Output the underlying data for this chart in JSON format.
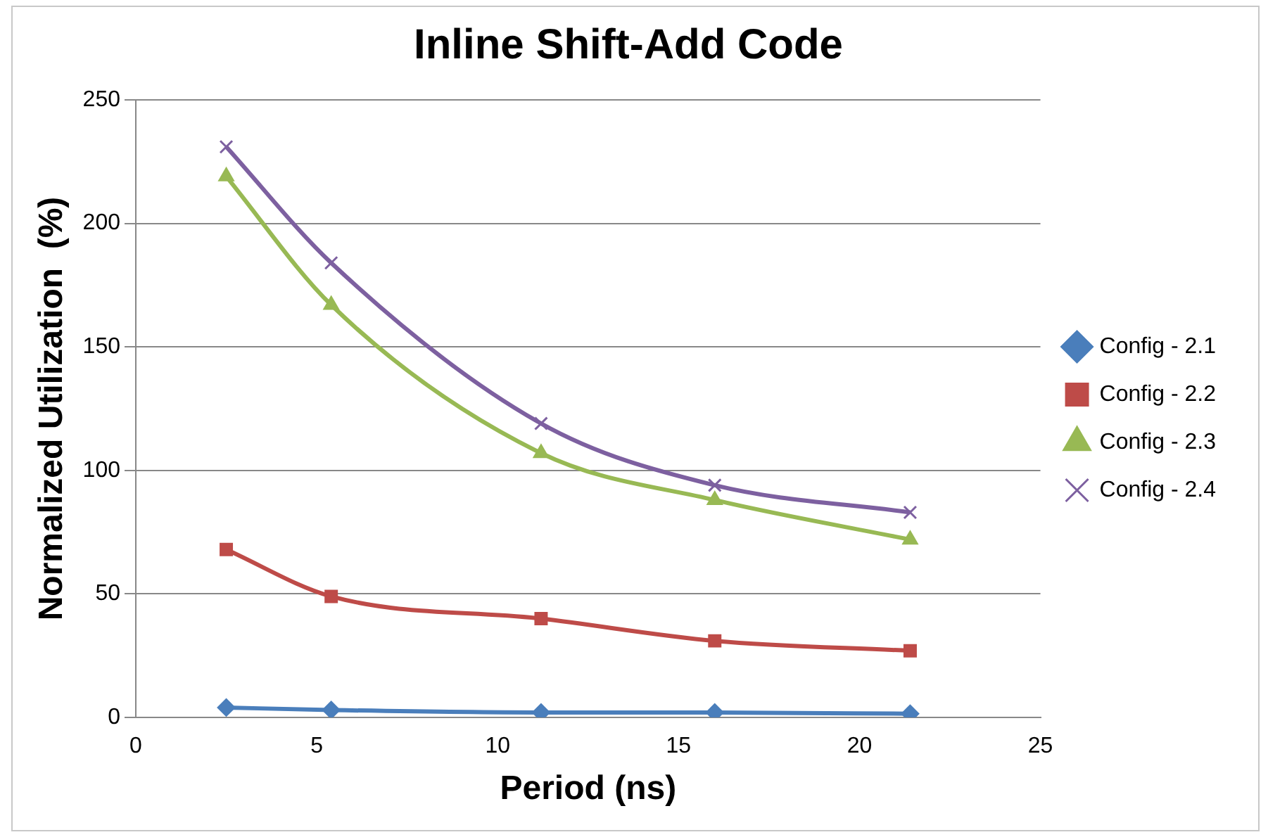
{
  "chart_data": {
    "type": "line",
    "title": "Inline Shift-Add Code",
    "xlabel": "Period (ns)",
    "ylabel": "Normalized Utilization  (%)",
    "x": [
      2.5,
      5.4,
      11.2,
      16,
      21.4
    ],
    "xlim": [
      0,
      25
    ],
    "xticks": [
      0,
      5,
      10,
      15,
      20,
      25
    ],
    "ylim": [
      0,
      250
    ],
    "yticks": [
      0,
      50,
      100,
      150,
      200,
      250
    ],
    "grid": "y",
    "legend": "right",
    "series": [
      {
        "name": "Config - 2.1",
        "color": "#4a7ebb",
        "marker": "diamond",
        "values": [
          4,
          3,
          2,
          2,
          1.5
        ]
      },
      {
        "name": "Config - 2.2",
        "color": "#be4b48",
        "marker": "square",
        "values": [
          68,
          49,
          40,
          31,
          27
        ]
      },
      {
        "name": "Config - 2.3",
        "color": "#98b954",
        "marker": "triangle",
        "values": [
          219,
          167,
          107,
          88,
          72
        ]
      },
      {
        "name": "Config - 2.4",
        "color": "#7d60a0",
        "marker": "cross",
        "values": [
          231,
          184,
          119,
          94,
          83
        ]
      }
    ]
  }
}
